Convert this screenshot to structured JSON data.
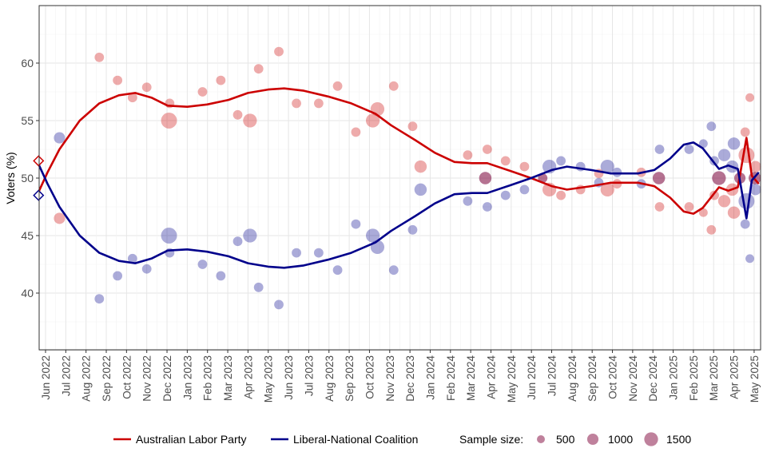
{
  "chart_data": {
    "type": "scatter",
    "title": "",
    "xlabel": "",
    "ylabel": "Voters (%)",
    "ylim": [
      35,
      65
    ],
    "xlim": [
      "2022-05-21",
      "2025-05-10"
    ],
    "y_ticks": [
      40,
      45,
      50,
      55,
      60
    ],
    "x_tick_labels": [
      "Jun 2022",
      "Jul 2022",
      "Aug 2022",
      "Sep 2022",
      "Oct 2022",
      "Nov 2022",
      "Dec 2022",
      "Jan 2023",
      "Feb 2023",
      "Mar 2023",
      "Apr 2023",
      "May 2023",
      "Jun 2023",
      "Jul 2023",
      "Aug 2023",
      "Sep 2023",
      "Oct 2023",
      "Nov 2023",
      "Dec 2023",
      "Jan 2024",
      "Feb 2024",
      "Mar 2024",
      "Apr 2024",
      "May 2024",
      "Jun 2024",
      "Jul 2024",
      "Aug 2024",
      "Sep 2024",
      "Oct 2024",
      "Nov 2024",
      "Dec 2024",
      "Jan 2025",
      "Feb 2025",
      "Mar 2025",
      "Apr 2025",
      "May 2025"
    ],
    "grid": true,
    "colors": {
      "alp": "#cc0000",
      "lnp": "#00008b",
      "overlap": "#8b1a4a"
    },
    "legend": {
      "position": "bottom",
      "series": [
        {
          "key": "alp",
          "label": "Australian Labor Party"
        },
        {
          "key": "lnp",
          "label": "Liberal-National Coalition"
        }
      ],
      "size_title": "Sample size:",
      "sizes": [
        {
          "value": 500,
          "label": "500"
        },
        {
          "value": 1000,
          "label": "1000"
        },
        {
          "value": 1500,
          "label": "1500"
        }
      ]
    },
    "election_result": {
      "date": "2022-05-21",
      "alp": 51.5,
      "lnp": 48.5
    },
    "polls_columns": [
      "date",
      "alp",
      "lnp",
      "sample_size"
    ],
    "polls": [
      [
        "2022-06-22",
        46.5,
        53.5,
        1000
      ],
      [
        "2022-08-21",
        60.5,
        39.5,
        700
      ],
      [
        "2022-09-18",
        58.5,
        41.5,
        700
      ],
      [
        "2022-10-10",
        57,
        43,
        700
      ],
      [
        "2022-11-01",
        57.9,
        42.1,
        700
      ],
      [
        "2022-12-04",
        55,
        45,
        2000
      ],
      [
        "2022-12-05",
        56.5,
        43.5,
        700
      ],
      [
        "2023-01-24",
        57.5,
        42.5,
        700
      ],
      [
        "2023-02-21",
        58.5,
        41.5,
        700
      ],
      [
        "2023-03-16",
        55.5,
        44.5,
        700
      ],
      [
        "2023-04-04",
        55,
        45,
        1500
      ],
      [
        "2023-04-17",
        59.5,
        40.5,
        700
      ],
      [
        "2023-05-17",
        61,
        39,
        700
      ],
      [
        "2023-06-13",
        56.5,
        43.5,
        700
      ],
      [
        "2023-07-16",
        56.5,
        43.5,
        700
      ],
      [
        "2023-08-14",
        58,
        42,
        700
      ],
      [
        "2023-09-11",
        54,
        46,
        700
      ],
      [
        "2023-10-06",
        55,
        45,
        1500
      ],
      [
        "2023-10-13",
        56,
        44,
        1500
      ],
      [
        "2023-11-07",
        58,
        42,
        700
      ],
      [
        "2023-12-05",
        54.5,
        45.5,
        700
      ],
      [
        "2023-12-17",
        51,
        49,
        1200
      ],
      [
        "2024-02-27",
        52,
        48,
        700
      ],
      [
        "2024-03-23",
        50,
        50,
        1200
      ],
      [
        "2024-03-26",
        52.5,
        47.5,
        700
      ],
      [
        "2024-04-23",
        51.5,
        48.5,
        700
      ],
      [
        "2024-05-21",
        51,
        49,
        700
      ],
      [
        "2024-06-18",
        50,
        50,
        700
      ],
      [
        "2024-06-28",
        49,
        51,
        1500
      ],
      [
        "2024-07-15",
        48.5,
        51.5,
        700
      ],
      [
        "2024-08-14",
        49,
        51,
        700
      ],
      [
        "2024-09-11",
        50.4,
        49.6,
        700
      ],
      [
        "2024-09-24",
        49,
        51,
        1500
      ],
      [
        "2024-10-08",
        49.5,
        50.5,
        700
      ],
      [
        "2024-11-14",
        50.5,
        49.5,
        700
      ],
      [
        "2024-12-10",
        50,
        50,
        1200
      ],
      [
        "2024-12-11",
        47.5,
        52.5,
        700
      ],
      [
        "2025-01-25",
        47.5,
        52.5,
        700
      ],
      [
        "2025-02-16",
        47,
        53,
        600
      ],
      [
        "2025-02-28",
        45.5,
        54.5,
        700
      ],
      [
        "2025-03-02",
        48.5,
        51.5,
        700
      ],
      [
        "2025-03-09",
        50,
        50,
        1500
      ],
      [
        "2025-03-17",
        48,
        52,
        1200
      ],
      [
        "2025-03-29",
        49,
        51,
        1200
      ],
      [
        "2025-04-01",
        47,
        53,
        1200
      ],
      [
        "2025-04-10",
        50,
        50,
        1000
      ],
      [
        "2025-04-18",
        54,
        46,
        700
      ],
      [
        "2025-04-20",
        52,
        48,
        2000
      ],
      [
        "2025-04-25",
        57,
        43,
        600
      ],
      [
        "2025-05-02",
        50,
        50,
        1200
      ],
      [
        "2025-05-03",
        51,
        49,
        1000
      ]
    ],
    "series": [
      {
        "name": "Australian Labor Party",
        "key": "alp",
        "x": [
          "2022-05-21",
          "2022-06-04",
          "2022-06-22",
          "2022-07-22",
          "2022-08-21",
          "2022-09-20",
          "2022-10-14",
          "2022-11-08",
          "2022-12-02",
          "2023-01-01",
          "2023-01-31",
          "2023-03-02",
          "2023-04-01",
          "2023-05-01",
          "2023-05-25",
          "2023-06-24",
          "2023-07-30",
          "2023-09-04",
          "2023-10-10",
          "2023-11-03",
          "2023-12-09",
          "2024-01-08",
          "2024-02-07",
          "2024-03-03",
          "2024-03-26",
          "2024-05-01",
          "2024-05-31",
          "2024-07-01",
          "2024-07-24",
          "2024-08-30",
          "2024-09-29",
          "2024-11-09",
          "2024-12-03",
          "2024-12-27",
          "2025-01-17",
          "2025-02-01",
          "2025-02-15",
          "2025-03-09",
          "2025-03-23",
          "2025-04-07",
          "2025-04-20",
          "2025-04-28",
          "2025-05-08"
        ],
        "y": [
          48.8,
          50.5,
          52.5,
          55,
          56.5,
          57.2,
          57.4,
          57.0,
          56.3,
          56.2,
          56.4,
          56.8,
          57.4,
          57.7,
          57.8,
          57.6,
          57.1,
          56.5,
          55.6,
          54.6,
          53.3,
          52.2,
          51.4,
          51.3,
          51.3,
          50.6,
          50.0,
          49.3,
          49.0,
          49.3,
          49.6,
          49.6,
          49.3,
          48.3,
          47.1,
          46.9,
          47.4,
          49.2,
          48.9,
          49.2,
          53.5,
          50.2,
          49.5
        ]
      },
      {
        "name": "Liberal-National Coalition",
        "key": "lnp",
        "x": [
          "2022-05-21",
          "2022-06-04",
          "2022-06-22",
          "2022-07-22",
          "2022-08-21",
          "2022-09-20",
          "2022-10-14",
          "2022-11-08",
          "2022-12-02",
          "2023-01-01",
          "2023-01-31",
          "2023-03-02",
          "2023-04-01",
          "2023-05-01",
          "2023-05-25",
          "2023-06-24",
          "2023-07-30",
          "2023-09-04",
          "2023-10-10",
          "2023-11-03",
          "2023-12-09",
          "2024-01-08",
          "2024-02-07",
          "2024-03-03",
          "2024-03-26",
          "2024-05-01",
          "2024-05-31",
          "2024-07-01",
          "2024-07-24",
          "2024-08-30",
          "2024-09-29",
          "2024-11-09",
          "2024-12-03",
          "2024-12-27",
          "2025-01-17",
          "2025-02-01",
          "2025-02-15",
          "2025-03-09",
          "2025-03-23",
          "2025-04-07",
          "2025-04-20",
          "2025-04-28",
          "2025-05-08"
        ],
        "y": [
          51.2,
          49.5,
          47.5,
          45,
          43.5,
          42.8,
          42.6,
          43.0,
          43.7,
          43.8,
          43.6,
          43.2,
          42.6,
          42.3,
          42.2,
          42.4,
          42.9,
          43.5,
          44.4,
          45.4,
          46.7,
          47.8,
          48.6,
          48.7,
          48.7,
          49.4,
          50.0,
          50.7,
          51.0,
          50.7,
          50.4,
          50.4,
          50.7,
          51.7,
          52.9,
          53.1,
          52.6,
          50.8,
          51.1,
          50.8,
          46.5,
          49.8,
          50.5
        ]
      }
    ]
  }
}
